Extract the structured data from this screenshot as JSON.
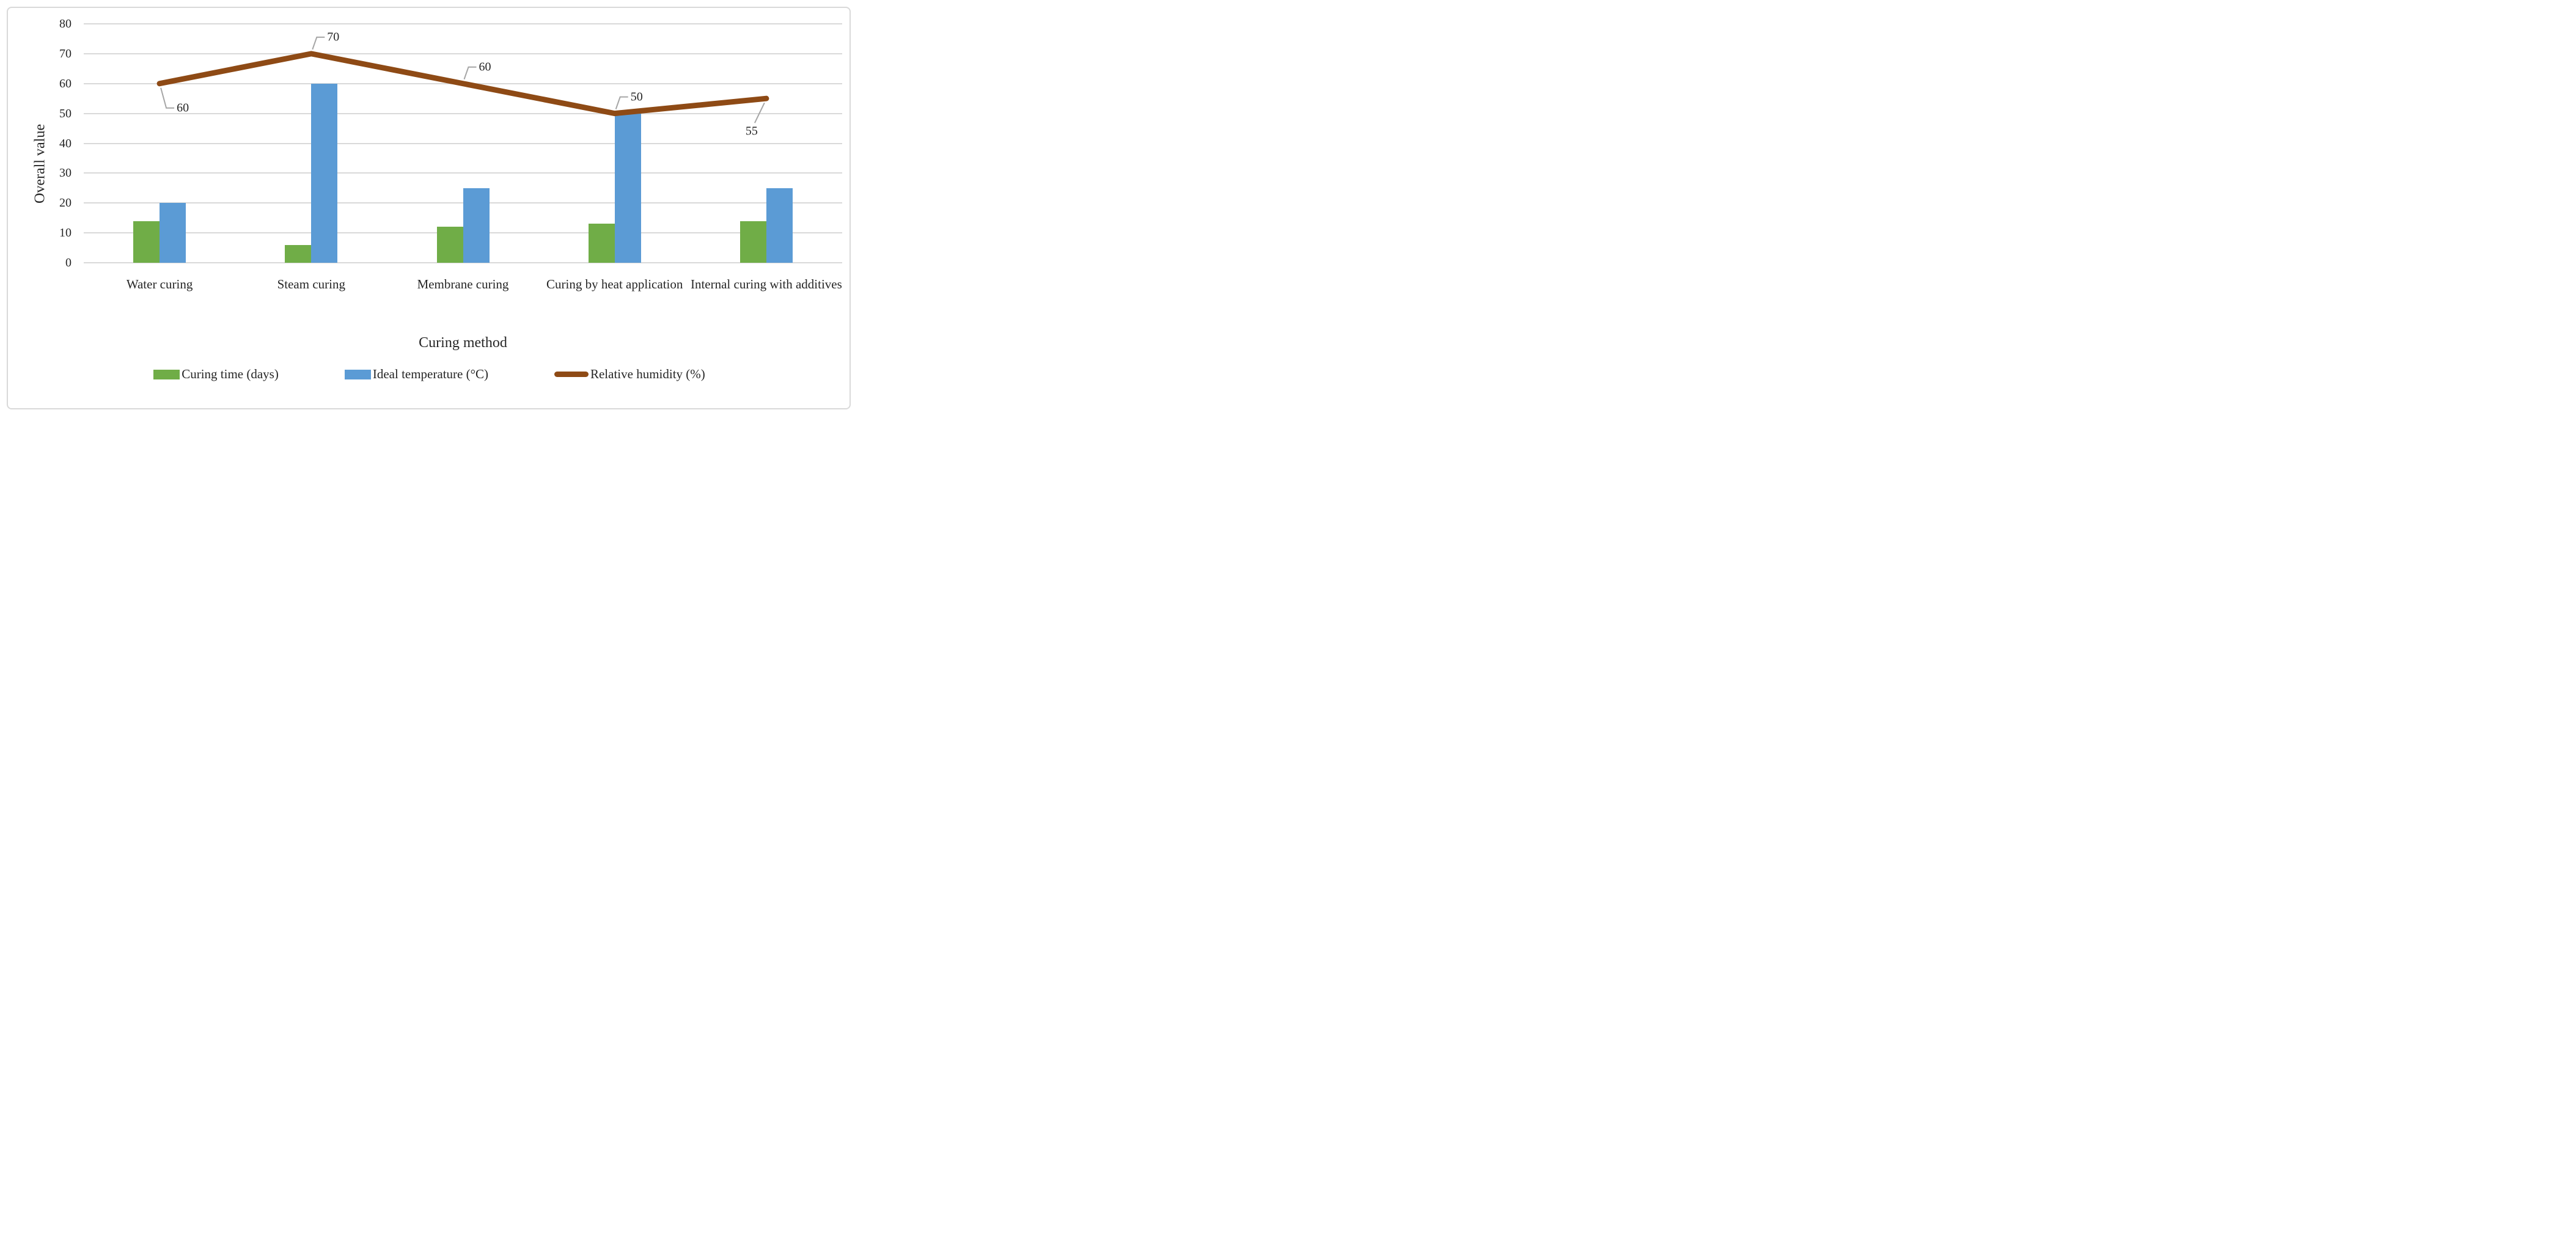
{
  "chart_data": {
    "type": "combo-bar-line",
    "title": "",
    "categories": [
      "Water curing",
      "Steam curing",
      "Membrane curing",
      "Curing by heat application",
      "Internal curing with additives"
    ],
    "series": [
      {
        "name": "Curing time (days)",
        "chart": "bar",
        "color": "#70AD47",
        "values": [
          14,
          6,
          12,
          13,
          14
        ]
      },
      {
        "name": "Ideal temperature (°C)",
        "chart": "bar",
        "color": "#5B9BD5",
        "values": [
          20,
          60,
          25,
          50,
          25
        ]
      },
      {
        "name": "Relative humidity (%)",
        "chart": "line",
        "color": "#8E4A15",
        "values": [
          60,
          70,
          60,
          50,
          55
        ],
        "data_labels": [
          "60",
          "70",
          "60",
          "50",
          "55"
        ],
        "label_placements": [
          "below-right",
          "above-right",
          "above-right",
          "above-right",
          "below-left"
        ]
      }
    ],
    "xlabel": "Curing method",
    "ylabel": "Overall value",
    "ylim": [
      0,
      80
    ],
    "yticks": [
      0,
      10,
      20,
      30,
      40,
      50,
      60,
      70,
      80
    ],
    "grid": "horizontal",
    "legend_position": "bottom"
  },
  "styles": {
    "background": "#ffffff",
    "frame_color": "#d9d9d9",
    "grid_color": "#d9d9d9",
    "text_color": "#262626",
    "leader_color": "#a6a6a6"
  }
}
